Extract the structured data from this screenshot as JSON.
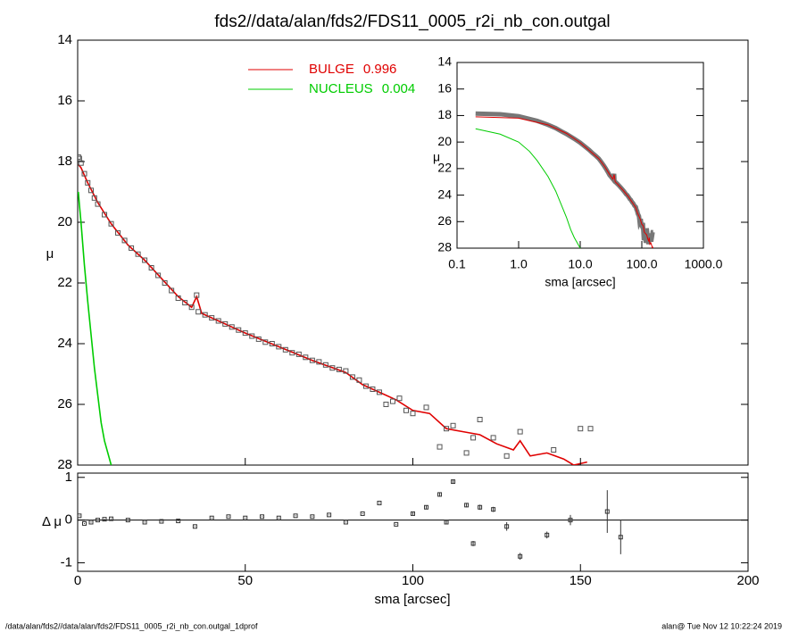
{
  "chart_data": [
    {
      "type": "scatter",
      "title": "fds2//data/alan/fds2/FDS11_0005_r2i_nb_con.outgal",
      "ylabel": "μ",
      "xlim": [
        0,
        200
      ],
      "ylim": [
        28,
        14
      ],
      "yticks": [
        14,
        16,
        18,
        20,
        22,
        24,
        26,
        28
      ],
      "points": {
        "color": "#555555",
        "x": [
          0.2,
          0.5,
          1,
          2,
          3,
          4,
          5,
          6,
          8,
          10,
          12,
          14,
          16,
          18,
          20,
          22,
          24,
          26,
          28,
          30,
          32,
          34,
          35.5,
          36,
          38,
          40,
          42,
          44,
          46,
          48,
          50,
          52,
          54,
          56,
          58,
          60,
          62,
          64,
          66,
          68,
          70,
          72,
          74,
          76,
          78,
          80,
          82,
          84,
          86,
          88,
          90,
          92,
          94,
          96,
          98,
          100,
          104,
          108,
          110,
          112,
          116,
          118,
          120,
          124,
          128,
          132,
          142,
          150,
          153
        ],
        "values": [
          17.85,
          17.9,
          18.05,
          18.4,
          18.7,
          18.95,
          19.2,
          19.4,
          19.75,
          20.05,
          20.35,
          20.6,
          20.85,
          21.05,
          21.25,
          21.5,
          21.75,
          22.0,
          22.25,
          22.5,
          22.65,
          22.8,
          22.4,
          22.95,
          23.05,
          23.15,
          23.25,
          23.35,
          23.45,
          23.55,
          23.65,
          23.75,
          23.85,
          23.95,
          24.0,
          24.1,
          24.2,
          24.3,
          24.35,
          24.45,
          24.55,
          24.6,
          24.7,
          24.8,
          24.85,
          24.9,
          25.1,
          25.2,
          25.4,
          25.5,
          25.6,
          26.0,
          25.9,
          25.8,
          26.2,
          26.3,
          26.1,
          27.4,
          26.8,
          26.7,
          27.6,
          27.1,
          26.5,
          27.1,
          27.7,
          26.9,
          27.5,
          26.8,
          26.8
        ]
      },
      "series": [
        {
          "name": "BULGE",
          "fraction": 0.996,
          "color": "#e00000",
          "x": [
            0.2,
            1,
            3,
            6,
            10,
            15,
            20,
            25,
            30,
            34,
            35.5,
            37,
            40,
            50,
            60,
            70,
            80,
            85,
            90,
            95,
            100,
            105,
            110,
            115,
            120,
            125,
            130,
            132,
            135,
            140,
            145,
            148,
            152
          ],
          "values": [
            18.1,
            18.2,
            18.7,
            19.35,
            20.05,
            20.75,
            21.25,
            21.85,
            22.45,
            22.8,
            22.45,
            23.0,
            23.15,
            23.65,
            24.1,
            24.55,
            24.95,
            25.35,
            25.6,
            25.85,
            26.2,
            26.3,
            26.8,
            26.9,
            27.0,
            27.3,
            27.5,
            27.2,
            27.7,
            27.6,
            27.8,
            28.0,
            27.9
          ]
        },
        {
          "name": "NUCLEUS",
          "fraction": 0.004,
          "color": "#00cc00",
          "x": [
            0.2,
            0.5,
            1,
            1.5,
            2,
            3,
            4,
            5,
            6,
            7,
            8,
            10
          ],
          "values": [
            19.0,
            19.4,
            20.0,
            20.7,
            21.4,
            22.6,
            23.7,
            24.8,
            25.7,
            26.6,
            27.2,
            28.0
          ]
        }
      ]
    },
    {
      "type": "errorbar",
      "ylabel": "Δ μ",
      "xlabel": "sma [arcsec]",
      "xlim": [
        0,
        200
      ],
      "xticks": [
        0,
        50,
        100,
        150,
        200
      ],
      "ylim": [
        -1.2,
        1.1
      ],
      "yticks": [
        -1,
        0,
        1
      ],
      "x": [
        0.5,
        2,
        4,
        6,
        8,
        10,
        15,
        20,
        25,
        30,
        35,
        40,
        45,
        50,
        55,
        60,
        65,
        70,
        75,
        80,
        85,
        90,
        95,
        100,
        104,
        108,
        110,
        112,
        116,
        118,
        120,
        124,
        128,
        132,
        140,
        147,
        158,
        162
      ],
      "values": [
        0.1,
        -0.08,
        -0.05,
        0.0,
        0.02,
        0.03,
        0.0,
        -0.05,
        -0.03,
        -0.02,
        -0.15,
        0.05,
        0.08,
        0.05,
        0.08,
        0.05,
        0.1,
        0.08,
        0.12,
        -0.05,
        0.15,
        0.4,
        -0.1,
        0.15,
        0.3,
        0.6,
        -0.05,
        0.9,
        0.35,
        -0.55,
        0.3,
        0.25,
        -0.15,
        -0.85,
        -0.35,
        0.0,
        0.2,
        -0.4
      ],
      "errors": [
        0.01,
        0.01,
        0.01,
        0.01,
        0.01,
        0.01,
        0.01,
        0.01,
        0.01,
        0.01,
        0.01,
        0.01,
        0.01,
        0.01,
        0.01,
        0.01,
        0.01,
        0.01,
        0.01,
        0.01,
        0.01,
        0.01,
        0.01,
        0.03,
        0.04,
        0.05,
        0.05,
        0.05,
        0.05,
        0.06,
        0.06,
        0.06,
        0.1,
        0.08,
        0.08,
        0.12,
        0.5,
        0.4
      ]
    },
    {
      "type": "inset",
      "ylabel": "μ",
      "xlabel": "sma [arcsec]",
      "log_x": true,
      "xlim": [
        0.1,
        1000
      ],
      "ylim": [
        28,
        14
      ],
      "xticks": [
        {
          "value": 0.1,
          "label": "0.1"
        },
        {
          "value": 1,
          "label": "1.0"
        },
        {
          "value": 10,
          "label": "10.0"
        },
        {
          "value": 100,
          "label": "100.0"
        },
        {
          "value": 1000,
          "label": "1000.0"
        }
      ],
      "yticks": [
        14,
        16,
        18,
        20,
        22,
        24,
        26,
        28
      ]
    }
  ],
  "footer": {
    "left": "/data/alan/fds2//data/alan/fds2/FDS11_0005_r2i_nb_con.outgal_1dprof",
    "right": "alan@  Tue Nov 12 10:22:24 2019"
  }
}
